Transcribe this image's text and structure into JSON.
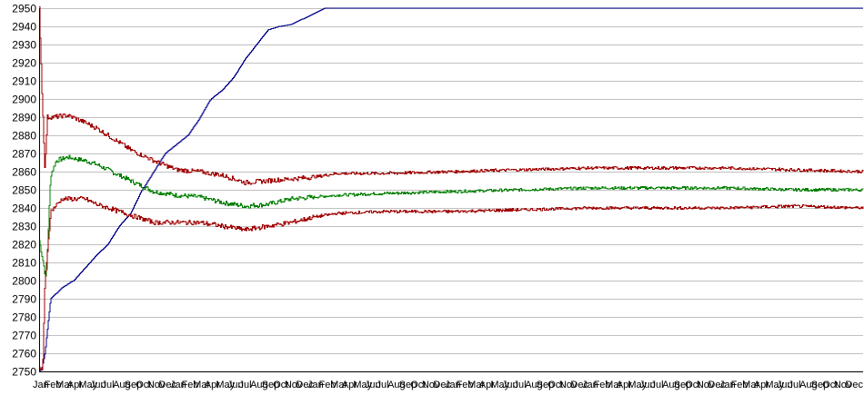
{
  "chart_data": {
    "type": "line",
    "title": "",
    "xlabel": "",
    "ylabel": "",
    "ylim": [
      2750,
      2950
    ],
    "yticks": [
      2750,
      2760,
      2770,
      2780,
      2790,
      2800,
      2810,
      2820,
      2830,
      2840,
      2850,
      2860,
      2870,
      2880,
      2890,
      2900,
      2910,
      2920,
      2930,
      2940,
      2950
    ],
    "x_tick_labels": [
      "Jan",
      "Feb",
      "Mar",
      "Apr",
      "May",
      "Jun",
      "Jul",
      "Aug",
      "Sep",
      "Oct",
      "Nov",
      "Dec"
    ],
    "x_tick_years": 6,
    "grid": true,
    "legend": "none",
    "series": [
      {
        "color": "#00008b",
        "noise": 0,
        "points": [
          [
            0,
            2750
          ],
          [
            0.2,
            2751
          ],
          [
            0.5,
            2760
          ],
          [
            1,
            2790
          ],
          [
            2,
            2796
          ],
          [
            3,
            2800
          ],
          [
            4,
            2807
          ],
          [
            5,
            2814
          ],
          [
            6,
            2820
          ],
          [
            7,
            2830
          ],
          [
            8,
            2837
          ],
          [
            9,
            2850
          ],
          [
            10,
            2860
          ],
          [
            11,
            2870
          ],
          [
            12,
            2875
          ],
          [
            13,
            2880
          ],
          [
            14,
            2889
          ],
          [
            15,
            2900
          ],
          [
            16,
            2905
          ],
          [
            17,
            2912
          ],
          [
            18,
            2922
          ],
          [
            19,
            2930
          ],
          [
            20,
            2938
          ],
          [
            21,
            2940
          ],
          [
            22,
            2941
          ],
          [
            23,
            2944
          ],
          [
            24,
            2947
          ],
          [
            25,
            2950
          ],
          [
            72,
            2950
          ]
        ]
      },
      {
        "color": "#008000",
        "noise": 0.8,
        "points": [
          [
            0,
            2822
          ],
          [
            0.3,
            2812
          ],
          [
            0.6,
            2800
          ],
          [
            1,
            2858
          ],
          [
            1.5,
            2866
          ],
          [
            2.5,
            2868
          ],
          [
            4,
            2866
          ],
          [
            5,
            2864
          ],
          [
            6,
            2861
          ],
          [
            8,
            2855
          ],
          [
            10,
            2849
          ],
          [
            12,
            2847
          ],
          [
            14,
            2846
          ],
          [
            16,
            2843
          ],
          [
            18,
            2841
          ],
          [
            20,
            2842
          ],
          [
            22,
            2845
          ],
          [
            24,
            2846
          ],
          [
            26,
            2847
          ],
          [
            30,
            2848
          ],
          [
            36,
            2849
          ],
          [
            42,
            2850
          ],
          [
            48,
            2851
          ],
          [
            60,
            2851
          ],
          [
            66,
            2850
          ],
          [
            72,
            2850
          ]
        ]
      },
      {
        "color": "#a00000",
        "noise": 0.8,
        "points": [
          [
            0,
            2950
          ],
          [
            0.25,
            2902
          ],
          [
            0.5,
            2860
          ],
          [
            0.7,
            2890
          ],
          [
            1.2,
            2890
          ],
          [
            2.5,
            2891
          ],
          [
            4,
            2887
          ],
          [
            5,
            2884
          ],
          [
            6,
            2880
          ],
          [
            8,
            2872
          ],
          [
            10,
            2866
          ],
          [
            12,
            2861
          ],
          [
            14,
            2860
          ],
          [
            16,
            2858
          ],
          [
            18,
            2854
          ],
          [
            20,
            2855
          ],
          [
            22,
            2856
          ],
          [
            24,
            2857
          ],
          [
            26,
            2859
          ],
          [
            30,
            2859
          ],
          [
            36,
            2860
          ],
          [
            42,
            2861
          ],
          [
            48,
            2862
          ],
          [
            60,
            2862
          ],
          [
            66,
            2861
          ],
          [
            72,
            2860
          ]
        ]
      },
      {
        "color": "#a00000",
        "noise": 0.8,
        "points": [
          [
            0,
            2752
          ],
          [
            0.3,
            2751
          ],
          [
            0.5,
            2800
          ],
          [
            1,
            2838
          ],
          [
            2,
            2845
          ],
          [
            4,
            2845
          ],
          [
            5,
            2842
          ],
          [
            6,
            2840
          ],
          [
            8,
            2836
          ],
          [
            10,
            2832
          ],
          [
            12,
            2832
          ],
          [
            14,
            2832
          ],
          [
            16,
            2830
          ],
          [
            18,
            2828
          ],
          [
            20,
            2830
          ],
          [
            22,
            2832
          ],
          [
            24,
            2835
          ],
          [
            26,
            2837
          ],
          [
            30,
            2838
          ],
          [
            36,
            2838
          ],
          [
            42,
            2839
          ],
          [
            48,
            2840
          ],
          [
            60,
            2840
          ],
          [
            66,
            2841
          ],
          [
            72,
            2840
          ]
        ]
      }
    ]
  }
}
